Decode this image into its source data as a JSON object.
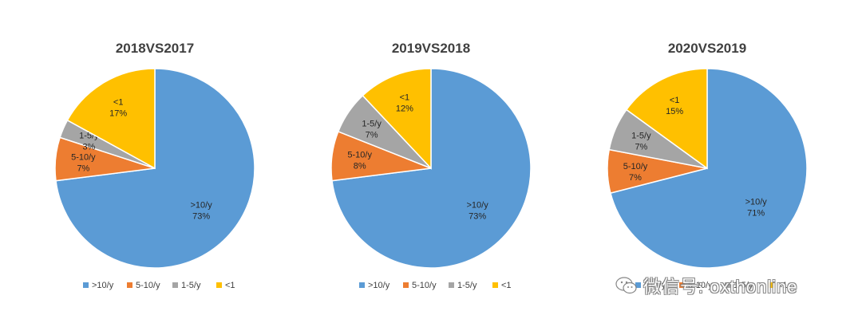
{
  "chart_data": [
    {
      "type": "pie",
      "title": "2018VS2017",
      "categories": [
        ">10/y",
        "5-10/y",
        "1-5/y",
        "<1"
      ],
      "values": [
        73,
        7,
        3,
        17
      ],
      "labels": [
        "73%",
        "7%",
        "3%",
        "17%"
      ]
    },
    {
      "type": "pie",
      "title": "2019VS2018",
      "categories": [
        ">10/y",
        "5-10/y",
        "1-5/y",
        "<1"
      ],
      "values": [
        73,
        8,
        7,
        12
      ],
      "labels": [
        "73%",
        "8%",
        "7%",
        "12%"
      ]
    },
    {
      "type": "pie",
      "title": "2020VS2019",
      "categories": [
        ">10/y",
        "5-10/y",
        "1-5/y",
        "<1"
      ],
      "values": [
        71,
        7,
        7,
        15
      ],
      "labels": [
        "71%",
        "7%",
        "7%",
        "15%"
      ]
    }
  ],
  "legend": [
    ">10/y",
    "5-10/y",
    "1-5/y",
    "<1"
  ],
  "colors": [
    "#5B9BD5",
    "#ED7D31",
    "#A5A5A5",
    "#FFC000"
  ],
  "legend_placement": "bottom",
  "watermark": {
    "text": "微信号: oxthonline",
    "icon": "wechat-icon"
  }
}
